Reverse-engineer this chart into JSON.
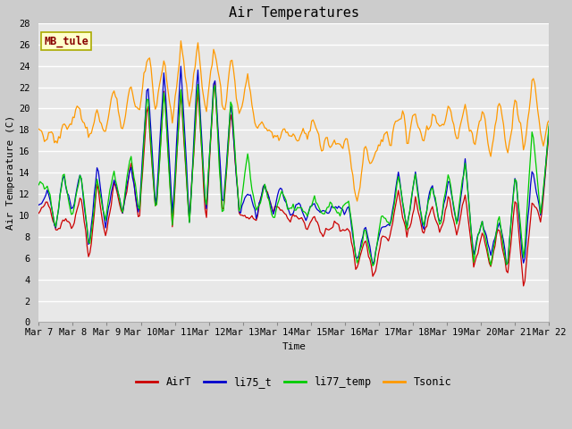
{
  "title": "Air Temperatures",
  "ylabel": "Air Temperature (C)",
  "xlabel": "Time",
  "annotation": "MB_tule",
  "ylim": [
    0,
    28
  ],
  "yticks": [
    0,
    2,
    4,
    6,
    8,
    10,
    12,
    14,
    16,
    18,
    20,
    22,
    24,
    26,
    28
  ],
  "xtick_labels": [
    "Mar 7",
    "Mar 8",
    "Mar 9",
    "Mar 10",
    "Mar 11",
    "Mar 12",
    "Mar 13",
    "Mar 14",
    "Mar 15",
    "Mar 16",
    "Mar 17",
    "Mar 18",
    "Mar 19",
    "Mar 20",
    "Mar 21",
    "Mar 22"
  ],
  "legend_labels": [
    "AirT",
    "li75_t",
    "li77_temp",
    "Tsonic"
  ],
  "legend_colors": [
    "#cc0000",
    "#0000cc",
    "#00cc00",
    "#ff9900"
  ],
  "bg_color": "#cccccc",
  "plot_bg_color": "#e8e8e8",
  "grid_color": "#ffffff",
  "title_fontsize": 11,
  "axis_fontsize": 8,
  "tick_fontsize": 7.5
}
